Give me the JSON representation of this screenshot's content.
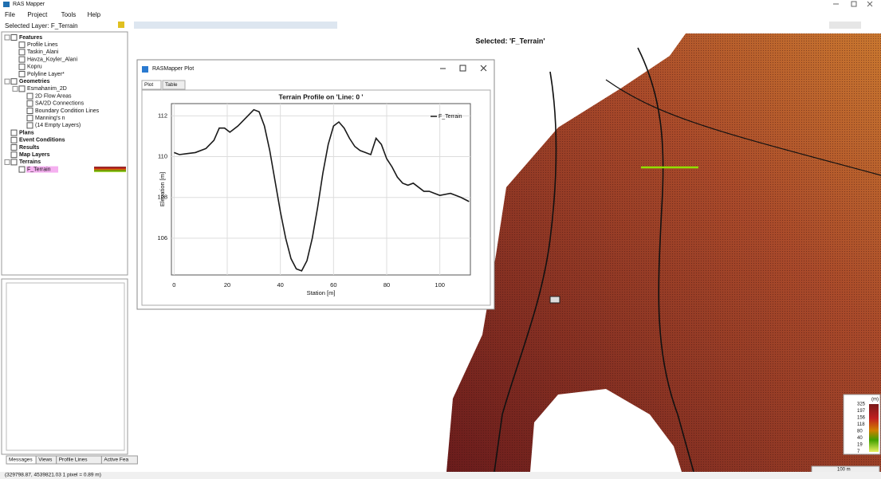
{
  "app": {
    "title": "RAS Mapper",
    "menu": [
      "File",
      "Project",
      "Tools",
      "Help"
    ],
    "selected_layer": "Selected Layer: F_Terrain",
    "selected_label": "Selected: 'F_Terrain'",
    "tree": [
      {
        "label": "Features",
        "children": [
          {
            "label": "Profile Lines"
          },
          {
            "label": "Taskin_Alani"
          },
          {
            "label": "Havza_Koyler_Alani"
          },
          {
            "label": "Kopru"
          },
          {
            "label": "Polyline Layer*"
          }
        ]
      },
      {
        "label": "Geometries",
        "children": [
          {
            "label": "Esmahanim_2D",
            "children": [
              {
                "label": "2D Flow Areas"
              },
              {
                "label": "SA/2D Connections"
              },
              {
                "label": "Boundary Condition Lines"
              },
              {
                "label": "Manning's n"
              },
              {
                "label": "(14 Empty Layers)"
              }
            ]
          }
        ]
      },
      {
        "label": "Plans"
      },
      {
        "label": "Event Conditions"
      },
      {
        "label": "Results"
      },
      {
        "label": "Map Layers"
      },
      {
        "label": "Terrains",
        "children": [
          {
            "label": "F_Terrain"
          }
        ]
      }
    ],
    "tabs": [
      "Messages",
      "Views",
      "Profile Lines",
      "Active Fea"
    ],
    "status": "(329798.87, 4539821.03  1 pixel = 0.89 m)"
  },
  "plot_window": {
    "title": "RASMapper Plot",
    "tabs": [
      "Plot",
      "Table"
    ]
  },
  "chart_data": {
    "type": "line",
    "title": "Terrain Profile on 'Line: 0 '",
    "x_label": "Station [m]",
    "y_label": "Elevation [m]",
    "x": [
      0,
      2,
      5,
      8,
      12,
      15,
      17,
      19,
      21,
      24,
      27,
      30,
      32,
      34,
      36,
      38,
      40,
      42,
      44,
      46,
      48,
      50,
      52,
      54,
      56,
      58,
      60,
      62,
      64,
      66,
      68,
      70,
      72,
      74,
      76,
      78,
      80,
      82,
      84,
      86,
      88,
      90,
      92,
      94,
      96,
      98,
      100,
      104,
      106,
      108,
      111
    ],
    "series": [
      {
        "name": "F_Terrain",
        "color": "#1a1a1a",
        "values": [
          110.2,
          110.1,
          110.15,
          110.2,
          110.4,
          110.8,
          111.4,
          111.4,
          111.2,
          111.5,
          111.9,
          112.3,
          112.2,
          111.5,
          110.3,
          108.8,
          107.3,
          106.0,
          105.0,
          104.5,
          104.4,
          104.9,
          106.0,
          107.5,
          109.2,
          110.6,
          111.5,
          111.7,
          111.4,
          110.9,
          110.5,
          110.3,
          110.2,
          110.1,
          110.9,
          110.6,
          109.9,
          109.5,
          109.0,
          108.7,
          108.6,
          108.7,
          108.5,
          108.3,
          108.3,
          108.2,
          108.1,
          108.2,
          108.1,
          108.0,
          107.8
        ]
      }
    ],
    "xlim": [
      -1,
      111.5
    ],
    "ylim": [
      104.2,
      112.6
    ],
    "xticks": [
      0,
      20,
      40,
      60,
      80,
      100
    ],
    "yticks": [
      106,
      108,
      110,
      112
    ],
    "grid": true,
    "legend": "upper right"
  },
  "map": {
    "legend_unit": "(m)",
    "legend_values": [
      325,
      197,
      156,
      118,
      80,
      40,
      19,
      7
    ],
    "scale": "100 m"
  }
}
